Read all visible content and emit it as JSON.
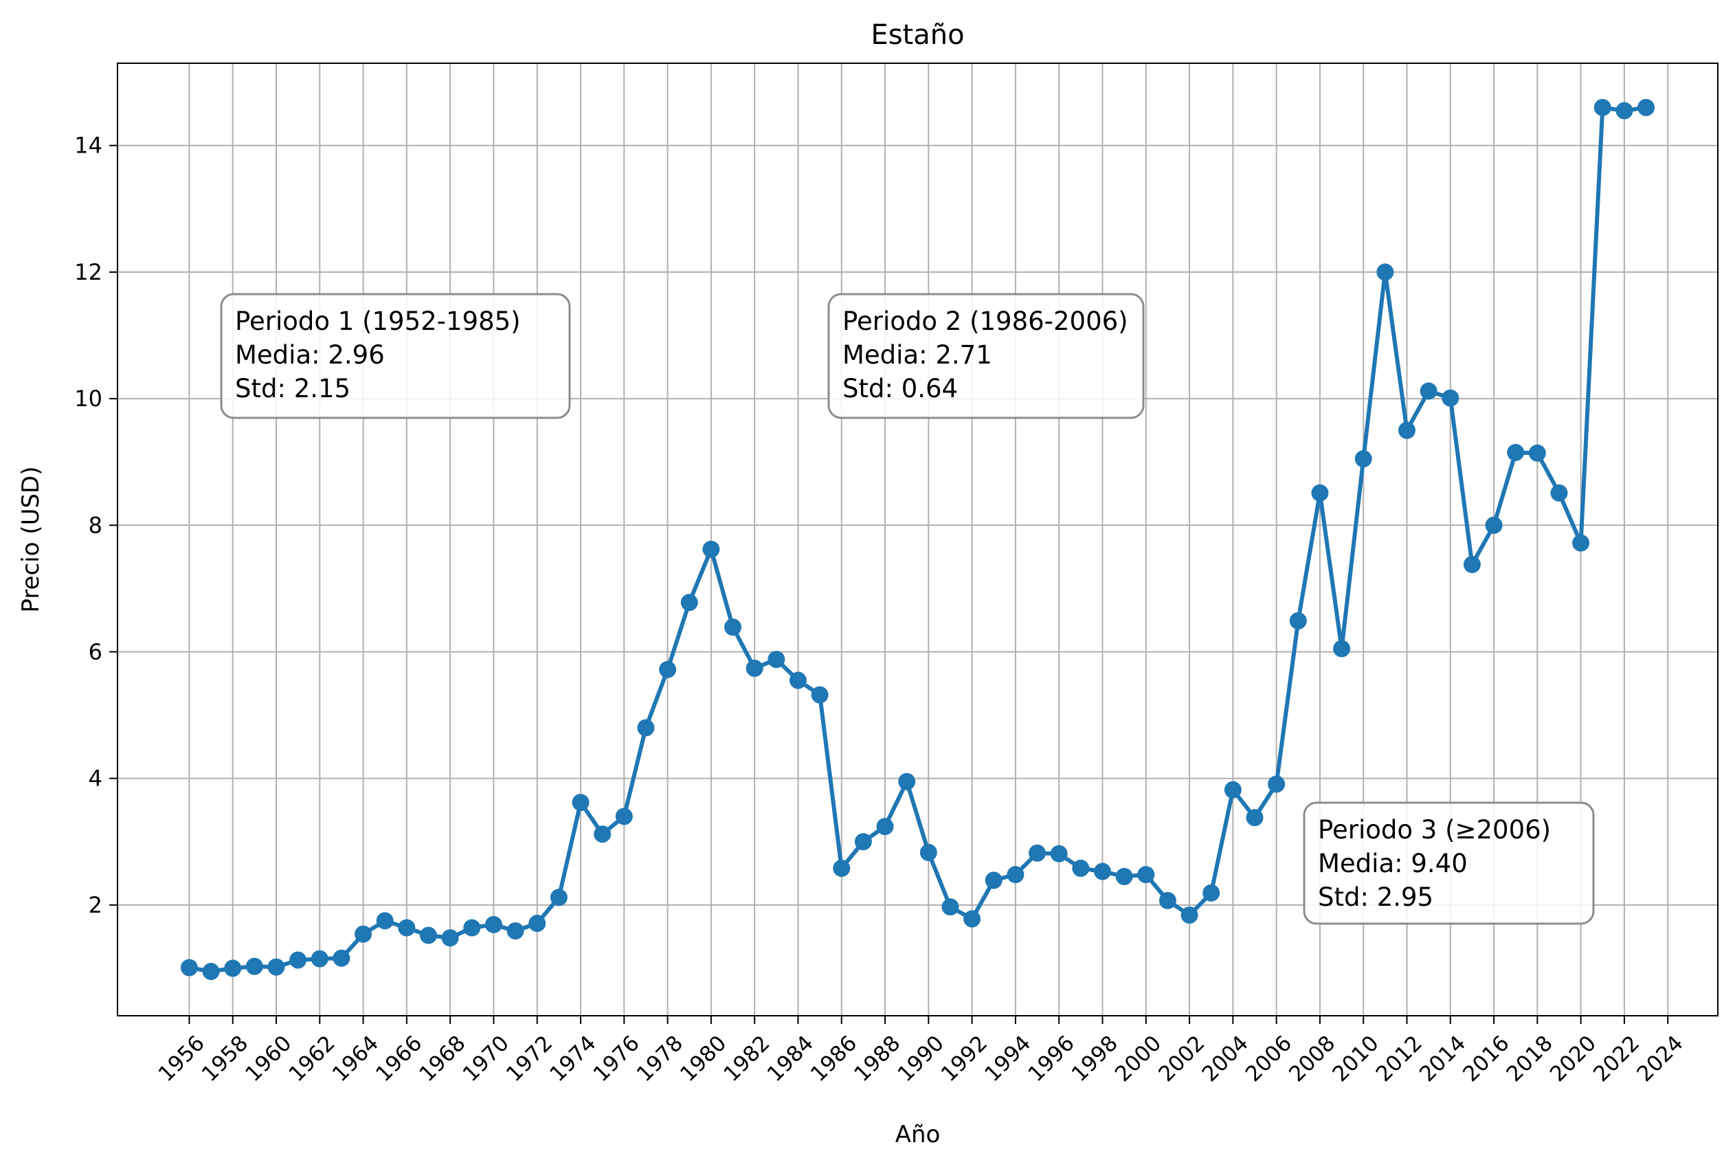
{
  "chart_data": {
    "type": "line",
    "title": "Estaño",
    "xlabel": "Año",
    "ylabel": "Precio (USD)",
    "xlim": [
      1952.7,
      2026.3
    ],
    "ylim": [
      0.25,
      15.3
    ],
    "grid": true,
    "x_ticks": [
      "1956",
      "1958",
      "1960",
      "1962",
      "1964",
      "1966",
      "1968",
      "1970",
      "1972",
      "1974",
      "1976",
      "1978",
      "1980",
      "1982",
      "1984",
      "1986",
      "1988",
      "1990",
      "1992",
      "1994",
      "1996",
      "1998",
      "2000",
      "2002",
      "2004",
      "2006",
      "2008",
      "2010",
      "2012",
      "2014",
      "2016",
      "2018",
      "2020",
      "2022",
      "2024"
    ],
    "y_ticks": [
      "2",
      "4",
      "6",
      "8",
      "10",
      "12",
      "14"
    ],
    "series": [
      {
        "color": "#1f77b4",
        "x": [
          1956,
          1957,
          1958,
          1959,
          1960,
          1961,
          1962,
          1963,
          1964,
          1965,
          1966,
          1967,
          1968,
          1969,
          1970,
          1971,
          1972,
          1973,
          1974,
          1975,
          1976,
          1977,
          1978,
          1979,
          1980,
          1981,
          1982,
          1983,
          1984,
          1985,
          1986,
          1987,
          1988,
          1989,
          1990,
          1991,
          1992,
          1993,
          1994,
          1995,
          1996,
          1997,
          1998,
          1999,
          2000,
          2001,
          2002,
          2003,
          2004,
          2005,
          2006,
          2007,
          2008,
          2009,
          2010,
          2011,
          2012,
          2013,
          2014,
          2015,
          2016,
          2017,
          2018,
          2019,
          2020,
          2021,
          2022,
          2023
        ],
        "y": [
          1.01,
          0.95,
          1.0,
          1.03,
          1.02,
          1.13,
          1.15,
          1.16,
          1.54,
          1.75,
          1.64,
          1.52,
          1.48,
          1.64,
          1.69,
          1.59,
          1.71,
          2.12,
          3.62,
          3.12,
          3.4,
          4.8,
          5.72,
          6.78,
          7.62,
          6.39,
          5.74,
          5.88,
          5.55,
          5.32,
          2.58,
          3.0,
          3.24,
          3.95,
          2.83,
          1.97,
          1.78,
          2.39,
          2.48,
          2.82,
          2.81,
          2.58,
          2.53,
          2.45,
          2.48,
          2.07,
          1.84,
          2.19,
          3.82,
          3.38,
          3.91,
          6.49,
          8.51,
          6.05,
          9.05,
          12.0,
          9.5,
          10.12,
          10.01,
          7.38,
          8.0,
          9.15,
          9.14,
          8.51,
          7.72,
          14.6,
          14.55,
          14.6
        ]
      }
    ],
    "annotations": [
      {
        "lines": [
          "Periodo 1 (1952-1985)",
          "Media: 2.96",
          "Std: 2.15"
        ]
      },
      {
        "lines": [
          "Periodo 2 (1986-2006)",
          "Media: 2.71",
          "Std: 0.64"
        ]
      },
      {
        "lines": [
          "Periodo 3 (≥2006)",
          "Media: 9.40",
          "Std: 2.95"
        ]
      }
    ]
  }
}
